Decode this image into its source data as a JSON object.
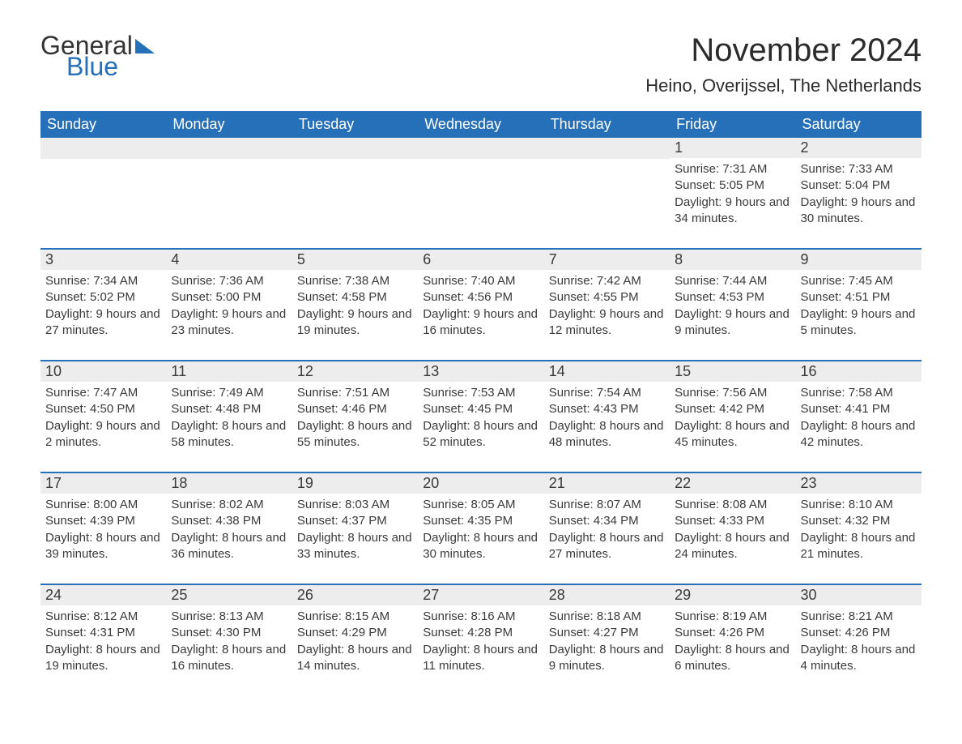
{
  "brand": {
    "word1": "General",
    "word2": "Blue"
  },
  "title": "November 2024",
  "location": "Heino, Overijssel, The Netherlands",
  "colors": {
    "header_bg": "#2570b8",
    "header_text": "#ffffff",
    "daynum_bg": "#ededed",
    "text": "#3a3a3a",
    "border": "#2570b8"
  },
  "day_headers": [
    "Sunday",
    "Monday",
    "Tuesday",
    "Wednesday",
    "Thursday",
    "Friday",
    "Saturday"
  ],
  "weeks": [
    [
      {
        "day": "",
        "sunrise": "",
        "sunset": "",
        "daylight": ""
      },
      {
        "day": "",
        "sunrise": "",
        "sunset": "",
        "daylight": ""
      },
      {
        "day": "",
        "sunrise": "",
        "sunset": "",
        "daylight": ""
      },
      {
        "day": "",
        "sunrise": "",
        "sunset": "",
        "daylight": ""
      },
      {
        "day": "",
        "sunrise": "",
        "sunset": "",
        "daylight": ""
      },
      {
        "day": "1",
        "sunrise": "Sunrise: 7:31 AM",
        "sunset": "Sunset: 5:05 PM",
        "daylight": "Daylight: 9 hours and 34 minutes."
      },
      {
        "day": "2",
        "sunrise": "Sunrise: 7:33 AM",
        "sunset": "Sunset: 5:04 PM",
        "daylight": "Daylight: 9 hours and 30 minutes."
      }
    ],
    [
      {
        "day": "3",
        "sunrise": "Sunrise: 7:34 AM",
        "sunset": "Sunset: 5:02 PM",
        "daylight": "Daylight: 9 hours and 27 minutes."
      },
      {
        "day": "4",
        "sunrise": "Sunrise: 7:36 AM",
        "sunset": "Sunset: 5:00 PM",
        "daylight": "Daylight: 9 hours and 23 minutes."
      },
      {
        "day": "5",
        "sunrise": "Sunrise: 7:38 AM",
        "sunset": "Sunset: 4:58 PM",
        "daylight": "Daylight: 9 hours and 19 minutes."
      },
      {
        "day": "6",
        "sunrise": "Sunrise: 7:40 AM",
        "sunset": "Sunset: 4:56 PM",
        "daylight": "Daylight: 9 hours and 16 minutes."
      },
      {
        "day": "7",
        "sunrise": "Sunrise: 7:42 AM",
        "sunset": "Sunset: 4:55 PM",
        "daylight": "Daylight: 9 hours and 12 minutes."
      },
      {
        "day": "8",
        "sunrise": "Sunrise: 7:44 AM",
        "sunset": "Sunset: 4:53 PM",
        "daylight": "Daylight: 9 hours and 9 minutes."
      },
      {
        "day": "9",
        "sunrise": "Sunrise: 7:45 AM",
        "sunset": "Sunset: 4:51 PM",
        "daylight": "Daylight: 9 hours and 5 minutes."
      }
    ],
    [
      {
        "day": "10",
        "sunrise": "Sunrise: 7:47 AM",
        "sunset": "Sunset: 4:50 PM",
        "daylight": "Daylight: 9 hours and 2 minutes."
      },
      {
        "day": "11",
        "sunrise": "Sunrise: 7:49 AM",
        "sunset": "Sunset: 4:48 PM",
        "daylight": "Daylight: 8 hours and 58 minutes."
      },
      {
        "day": "12",
        "sunrise": "Sunrise: 7:51 AM",
        "sunset": "Sunset: 4:46 PM",
        "daylight": "Daylight: 8 hours and 55 minutes."
      },
      {
        "day": "13",
        "sunrise": "Sunrise: 7:53 AM",
        "sunset": "Sunset: 4:45 PM",
        "daylight": "Daylight: 8 hours and 52 minutes."
      },
      {
        "day": "14",
        "sunrise": "Sunrise: 7:54 AM",
        "sunset": "Sunset: 4:43 PM",
        "daylight": "Daylight: 8 hours and 48 minutes."
      },
      {
        "day": "15",
        "sunrise": "Sunrise: 7:56 AM",
        "sunset": "Sunset: 4:42 PM",
        "daylight": "Daylight: 8 hours and 45 minutes."
      },
      {
        "day": "16",
        "sunrise": "Sunrise: 7:58 AM",
        "sunset": "Sunset: 4:41 PM",
        "daylight": "Daylight: 8 hours and 42 minutes."
      }
    ],
    [
      {
        "day": "17",
        "sunrise": "Sunrise: 8:00 AM",
        "sunset": "Sunset: 4:39 PM",
        "daylight": "Daylight: 8 hours and 39 minutes."
      },
      {
        "day": "18",
        "sunrise": "Sunrise: 8:02 AM",
        "sunset": "Sunset: 4:38 PM",
        "daylight": "Daylight: 8 hours and 36 minutes."
      },
      {
        "day": "19",
        "sunrise": "Sunrise: 8:03 AM",
        "sunset": "Sunset: 4:37 PM",
        "daylight": "Daylight: 8 hours and 33 minutes."
      },
      {
        "day": "20",
        "sunrise": "Sunrise: 8:05 AM",
        "sunset": "Sunset: 4:35 PM",
        "daylight": "Daylight: 8 hours and 30 minutes."
      },
      {
        "day": "21",
        "sunrise": "Sunrise: 8:07 AM",
        "sunset": "Sunset: 4:34 PM",
        "daylight": "Daylight: 8 hours and 27 minutes."
      },
      {
        "day": "22",
        "sunrise": "Sunrise: 8:08 AM",
        "sunset": "Sunset: 4:33 PM",
        "daylight": "Daylight: 8 hours and 24 minutes."
      },
      {
        "day": "23",
        "sunrise": "Sunrise: 8:10 AM",
        "sunset": "Sunset: 4:32 PM",
        "daylight": "Daylight: 8 hours and 21 minutes."
      }
    ],
    [
      {
        "day": "24",
        "sunrise": "Sunrise: 8:12 AM",
        "sunset": "Sunset: 4:31 PM",
        "daylight": "Daylight: 8 hours and 19 minutes."
      },
      {
        "day": "25",
        "sunrise": "Sunrise: 8:13 AM",
        "sunset": "Sunset: 4:30 PM",
        "daylight": "Daylight: 8 hours and 16 minutes."
      },
      {
        "day": "26",
        "sunrise": "Sunrise: 8:15 AM",
        "sunset": "Sunset: 4:29 PM",
        "daylight": "Daylight: 8 hours and 14 minutes."
      },
      {
        "day": "27",
        "sunrise": "Sunrise: 8:16 AM",
        "sunset": "Sunset: 4:28 PM",
        "daylight": "Daylight: 8 hours and 11 minutes."
      },
      {
        "day": "28",
        "sunrise": "Sunrise: 8:18 AM",
        "sunset": "Sunset: 4:27 PM",
        "daylight": "Daylight: 8 hours and 9 minutes."
      },
      {
        "day": "29",
        "sunrise": "Sunrise: 8:19 AM",
        "sunset": "Sunset: 4:26 PM",
        "daylight": "Daylight: 8 hours and 6 minutes."
      },
      {
        "day": "30",
        "sunrise": "Sunrise: 8:21 AM",
        "sunset": "Sunset: 4:26 PM",
        "daylight": "Daylight: 8 hours and 4 minutes."
      }
    ]
  ]
}
